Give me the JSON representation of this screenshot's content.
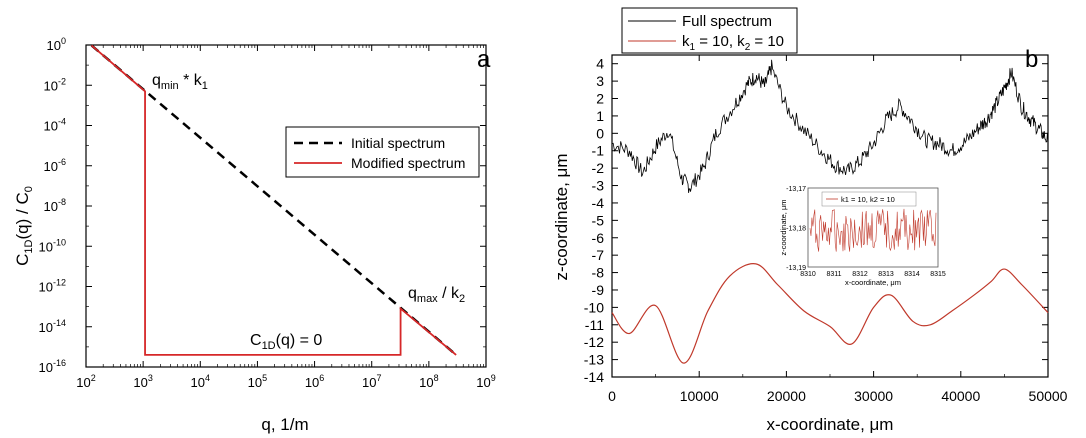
{
  "chart_data": [
    {
      "type": "line",
      "panel_label": "a",
      "xlabel": "q, 1/m",
      "ylabel": "C1D(q) / C0",
      "x_scale": "log",
      "y_scale": "log",
      "xlim": [
        100,
        1000000000
      ],
      "ylim": [
        1e-16,
        1
      ],
      "x_ticks": [
        100,
        1000,
        10000,
        100000,
        1000000,
        10000000,
        100000000,
        1000000000
      ],
      "y_ticks": [
        1e-16,
        1e-14,
        1e-12,
        1e-10,
        1e-08,
        1e-06,
        0.0001,
        0.01,
        1
      ],
      "x_tick_labels": [
        [
          "10",
          "2"
        ],
        [
          "10",
          "3"
        ],
        [
          "10",
          "4"
        ],
        [
          "10",
          "5"
        ],
        [
          "10",
          "6"
        ],
        [
          "10",
          "7"
        ],
        [
          "10",
          "8"
        ],
        [
          "10",
          "9"
        ]
      ],
      "y_tick_labels": [
        [
          "10",
          "-16"
        ],
        [
          "10",
          "-14"
        ],
        [
          "10",
          "-12"
        ],
        [
          "10",
          "-10"
        ],
        [
          "10",
          "-8"
        ],
        [
          "10",
          "-6"
        ],
        [
          "10",
          "-4"
        ],
        [
          "10",
          "-2"
        ],
        [
          "10",
          "0"
        ]
      ],
      "legend_position": "right-middle",
      "series": [
        {
          "name": "Initial spectrum",
          "style": "dashed",
          "color": "#000000",
          "points": [
            [
              125,
              0.95
            ],
            [
              300000000,
              4e-16
            ]
          ]
        },
        {
          "name": "Modified spectrum",
          "style": "solid",
          "color": "#d62728",
          "points": [
            [
              125,
              0.95
            ],
            [
              1080,
              0.005
            ],
            [
              1080,
              4e-16
            ],
            [
              32000000,
              4e-16
            ],
            [
              32000000,
              8e-14
            ],
            [
              300000000,
              4e-16
            ]
          ]
        }
      ],
      "annotations": [
        {
          "main": "q",
          "sub": "min",
          "rest": " * k",
          "sub2": "1"
        },
        {
          "main": "q",
          "sub": "max",
          "rest": " / k",
          "sub2": "2"
        },
        {
          "main": "C",
          "sub": "1D",
          "rest": "(q) = 0",
          "sub2": ""
        }
      ]
    },
    {
      "type": "line",
      "panel_label": "b",
      "xlabel": "x-coordinate, μm",
      "ylabel": "z-coordinate, μm",
      "xlim": [
        0,
        50000
      ],
      "ylim": [
        -14,
        4.5
      ],
      "x_ticks": [
        0,
        10000,
        20000,
        30000,
        40000,
        50000
      ],
      "y_ticks": [
        -14,
        -13,
        -12,
        -11,
        -10,
        -9,
        -8,
        -7,
        -6,
        -5,
        -4,
        -3,
        -2,
        -1,
        0,
        1,
        2,
        3,
        4
      ],
      "legend_position": "top-left (outside)",
      "series": [
        {
          "name": "Full spectrum",
          "color": "#000000",
          "x": [
            0,
            2000,
            3500,
            5000,
            6500,
            8000,
            9000,
            10500,
            12000,
            14000,
            15500,
            16500,
            17500,
            18300,
            20000,
            22000,
            24000,
            25500,
            27000,
            28500,
            30000,
            31500,
            33000,
            34500,
            36000,
            37500,
            39000,
            40500,
            42000,
            43000,
            44000,
            45000,
            45800,
            47000,
            48000,
            49000,
            50000
          ],
          "values": [
            -0.6,
            -1.0,
            -2.3,
            -0.8,
            0.2,
            -2.6,
            -3.1,
            -2.0,
            0.1,
            1.6,
            2.8,
            3.3,
            2.7,
            3.8,
            1.5,
            0.2,
            -1.0,
            -1.8,
            -2.2,
            -1.6,
            -0.6,
            0.8,
            1.6,
            0.6,
            -0.4,
            -0.6,
            -1.0,
            -0.5,
            0.3,
            0.8,
            1.6,
            2.6,
            3.5,
            1.5,
            0.8,
            0.2,
            -0.4
          ]
        },
        {
          "name": "k1 = 10, k2 = 10",
          "color": "#c0392b",
          "x": [
            0,
            2000,
            5000,
            8200,
            11000,
            13500,
            16500,
            19000,
            22000,
            25000,
            27500,
            30000,
            32000,
            34500,
            36500,
            39000,
            41500,
            43500,
            45000,
            47000,
            50000
          ],
          "values": [
            -10.3,
            -11.5,
            -9.9,
            -13.2,
            -10.2,
            -8.2,
            -7.5,
            -8.7,
            -10.2,
            -11.1,
            -12.1,
            -10.0,
            -9.3,
            -10.8,
            -11.0,
            -10.2,
            -9.3,
            -8.5,
            -7.8,
            -8.7,
            -10.3
          ]
        }
      ],
      "legend_entries": [
        {
          "text": "Full spectrum"
        },
        {
          "text": "k",
          "sub1": "1",
          "mid": " = 10, k",
          "sub2": "2",
          "tail": " = 10"
        }
      ],
      "inset": {
        "xlabel": "x-coordinate, μm",
        "ylabel": "z-coordinate, μm",
        "xlim": [
          8310,
          8315
        ],
        "ylim": [
          -13.19,
          -13.17
        ],
        "x_ticks": [
          8310,
          8311,
          8312,
          8313,
          8314,
          8315
        ],
        "y_ticks": [
          "-13,17",
          "-13,18",
          "-13,19"
        ],
        "legend": "k1 = 10, k2 = 10",
        "series_color": "#c0392b",
        "series_style": "dense noisy oscillation around -13.18"
      }
    }
  ]
}
